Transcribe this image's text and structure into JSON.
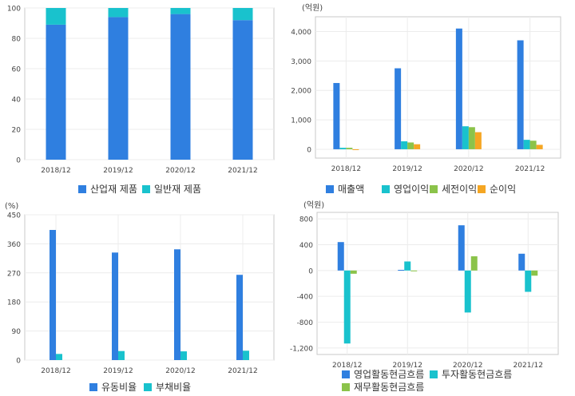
{
  "chart_data": [
    {
      "type": "bar",
      "stacked": true,
      "title": "",
      "unit": "",
      "categories": [
        "2018/12",
        "2019/12",
        "2020/12",
        "2021/12"
      ],
      "series": [
        {
          "name": "산업재 제품",
          "values": [
            89,
            94,
            96,
            92
          ],
          "color": "#2f7fe0"
        },
        {
          "name": "일반재 제품",
          "values": [
            11,
            6,
            4,
            8
          ],
          "color": "#19c2cd"
        }
      ],
      "ylim": [
        0,
        100
      ],
      "yticks": [
        "0",
        "20",
        "40",
        "60",
        "80",
        "100"
      ],
      "legend": "bottom",
      "grid": true
    },
    {
      "type": "bar",
      "title": "",
      "unit": "(억원)",
      "categories": [
        "2018/12",
        "2019/12",
        "2020/12",
        "2021/12"
      ],
      "series": [
        {
          "name": "매출액",
          "values": [
            2250,
            2750,
            4100,
            3700
          ],
          "color": "#2f7fe0"
        },
        {
          "name": "영업이익",
          "values": [
            50,
            270,
            780,
            320
          ],
          "color": "#19c2cd"
        },
        {
          "name": "세전이익",
          "values": [
            50,
            230,
            750,
            290
          ],
          "color": "#8bc34a"
        },
        {
          "name": "순이익",
          "values": [
            -20,
            170,
            580,
            150
          ],
          "color": "#f5a623"
        }
      ],
      "ylim": [
        -300,
        4500
      ],
      "yticks": [
        "0",
        "1,000",
        "2,000",
        "3,000",
        "4,000"
      ],
      "legend": "bottom",
      "grid": true
    },
    {
      "type": "bar",
      "title": "",
      "unit": "(%)",
      "categories": [
        "2018/12",
        "2019/12",
        "2020/12",
        "2021/12"
      ],
      "series": [
        {
          "name": "유동비율",
          "values": [
            403,
            333,
            343,
            264
          ],
          "color": "#2f7fe0"
        },
        {
          "name": "부채비율",
          "values": [
            19,
            28,
            27,
            29
          ],
          "color": "#19c2cd"
        }
      ],
      "ylim": [
        0,
        450
      ],
      "yticks": [
        "0",
        "90",
        "180",
        "270",
        "360",
        "450"
      ],
      "legend": "bottom",
      "grid": true
    },
    {
      "type": "bar",
      "title": "",
      "unit": "(억원)",
      "categories": [
        "2018/12",
        "2019/12",
        "2020/12",
        "2021/12"
      ],
      "series": [
        {
          "name": "영업활동현금흐름",
          "values": [
            440,
            10,
            700,
            260
          ],
          "color": "#2f7fe0"
        },
        {
          "name": "투자활동현금흐름",
          "values": [
            -1130,
            140,
            -650,
            -330
          ],
          "color": "#19c2cd"
        },
        {
          "name": "재무활동현금흐름",
          "values": [
            -50,
            -10,
            220,
            -80
          ],
          "color": "#8bc34a"
        }
      ],
      "ylim": [
        -1300,
        900
      ],
      "yticks": [
        "-1,200",
        "-800",
        "-400",
        "0",
        "400",
        "800"
      ],
      "legend": "bottom",
      "grid": true
    }
  ]
}
